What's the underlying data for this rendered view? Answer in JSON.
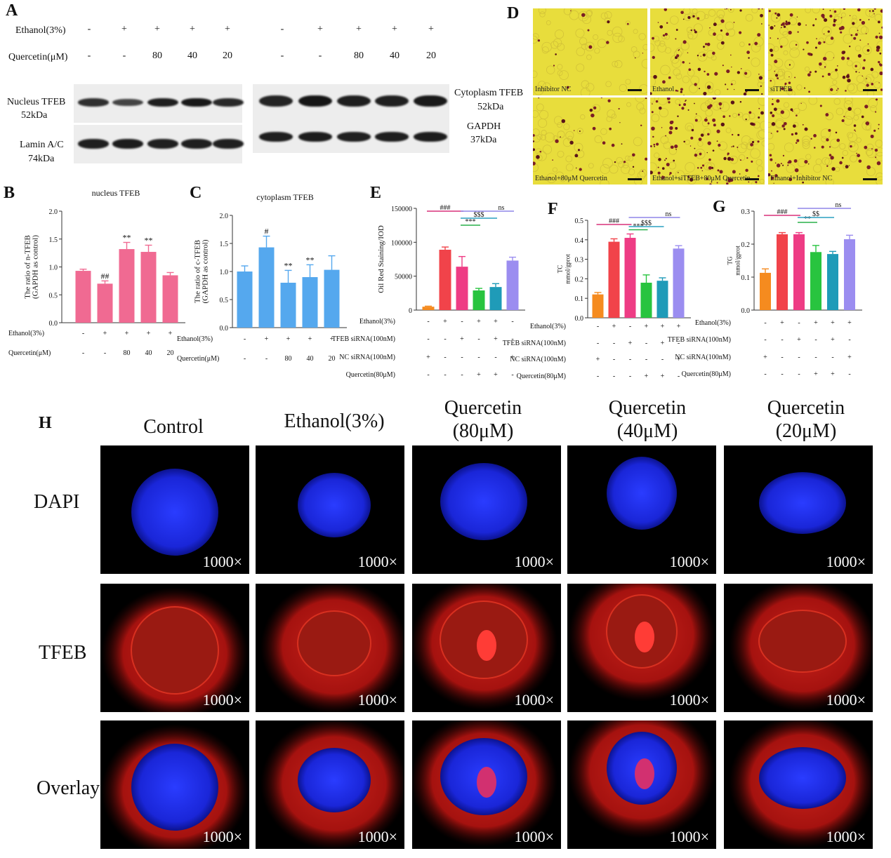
{
  "panel_labels": {
    "A": "A",
    "B": "B",
    "C": "C",
    "D": "D",
    "E": "E",
    "F": "F",
    "G": "G",
    "H": "H"
  },
  "western_blot": {
    "conditions": [
      {
        "label": "Ethanol(3%)",
        "values": [
          "-",
          "+",
          "+",
          "+",
          "+"
        ]
      },
      {
        "label": "Quercetin(μM)",
        "values": [
          "-",
          "-",
          "80",
          "40",
          "20"
        ]
      }
    ],
    "left_labels": {
      "nucleus": "Nucleus TFEB",
      "nucleus_kda": "52kDa",
      "lamin": "Lamin A/C",
      "lamin_kda": "74kDa"
    },
    "right_labels": {
      "cyto": "Cytoplasm TFEB",
      "cyto_kda": "52kDa",
      "gapdh": "GAPDH",
      "gapdh_kda": "37kDa"
    },
    "nucleus_band_intensity": [
      0.75,
      0.55,
      0.9,
      0.95,
      0.8
    ],
    "lamin_band_intensity": [
      0.9,
      0.92,
      0.9,
      0.9,
      0.88
    ],
    "cyto_band_intensity": [
      0.85,
      0.98,
      0.9,
      0.88,
      0.95
    ],
    "gapdh_band_intensity": [
      0.9,
      0.92,
      0.9,
      0.9,
      0.92
    ]
  },
  "microscopy": {
    "captions": [
      "Inhibitor NC",
      "Ethanol",
      "siTFEB",
      "Ethanol+80μM Quercetin",
      "Ethanol+siTFEB+80μM Quercetin",
      "Ethanol+Inhibitor NC"
    ],
    "droplet_density": [
      0.05,
      0.35,
      0.55,
      0.15,
      0.5,
      0.35
    ]
  },
  "chart_data": [
    {
      "panel": "B",
      "type": "bar",
      "title": "nucleus TFEB",
      "ylabel_lines": [
        "The ratio of n-TFEB",
        "(GAPDH as control)"
      ],
      "ylim": [
        0,
        2.0
      ],
      "yticks": [
        "0.0",
        "0.5",
        "1.0",
        "1.5",
        "2.0"
      ],
      "values": [
        0.93,
        0.7,
        1.32,
        1.27,
        0.85
      ],
      "errors": [
        0.03,
        0.05,
        0.12,
        0.12,
        0.05
      ],
      "annotations": [
        "",
        "##",
        "**",
        "**",
        ""
      ],
      "color": "#f06a92",
      "rows": [
        {
          "label": "Ethanol(3%)",
          "values": [
            "-",
            "+",
            "+",
            "+",
            "+"
          ]
        },
        {
          "label": "Quercetin(μM)",
          "values": [
            "-",
            "-",
            "80",
            "40",
            "20"
          ]
        }
      ]
    },
    {
      "panel": "C",
      "type": "bar",
      "title": "cytoplasm TFEB",
      "ylabel_lines": [
        "The ratio of c-TFEB",
        "(GAPDH as control)"
      ],
      "ylim": [
        0,
        2.0
      ],
      "yticks": [
        "0.0",
        "0.5",
        "1.0",
        "1.5",
        "2.0"
      ],
      "values": [
        1.0,
        1.43,
        0.8,
        0.9,
        1.03
      ],
      "errors": [
        0.1,
        0.2,
        0.22,
        0.22,
        0.25
      ],
      "annotations": [
        "",
        "#",
        "**",
        "**",
        ""
      ],
      "color": "#55a8ee",
      "rows": [
        {
          "label": "Ethanol(3%)",
          "values": [
            "-",
            "+",
            "+",
            "+",
            "+"
          ]
        },
        {
          "label": "Quercetin(μM)",
          "values": [
            "-",
            "-",
            "80",
            "40",
            "20"
          ]
        }
      ]
    },
    {
      "panel": "E",
      "type": "bar",
      "ylabel_lines": [
        "Oil Red Staining/IOD"
      ],
      "ylim": [
        0,
        150000
      ],
      "yticks": [
        "0",
        "50000",
        "100000",
        "150000"
      ],
      "values": [
        5000,
        89000,
        64000,
        29000,
        34000,
        73000
      ],
      "errors": [
        800,
        4000,
        15000,
        3000,
        5000,
        5000
      ],
      "colors": [
        "#f58b1f",
        "#f1434a",
        "#ee3c84",
        "#28c43f",
        "#1f9bb8",
        "#9b8df0"
      ],
      "brackets": [
        {
          "text": "###",
          "from": 0,
          "to": 2,
          "color": "#d8307a",
          "level": 0
        },
        {
          "text": "***",
          "from": 2,
          "to": 3,
          "color": "#28b04a",
          "level": 2
        },
        {
          "text": "$$$",
          "from": 2,
          "to": 4,
          "color": "#2aa0c0",
          "level": 1
        },
        {
          "text": "ns",
          "from": 2,
          "to": 5,
          "color": "#8f86e8",
          "level": 0
        }
      ],
      "rows": [
        {
          "label": "Ethanol(3%)",
          "values": [
            "-",
            "+",
            "-",
            "+",
            "+",
            "-"
          ]
        },
        {
          "label": "TFEB siRNA(100nM)",
          "values": [
            "-",
            "-",
            "+",
            "-",
            "+",
            "-"
          ]
        },
        {
          "label": "NC siRNA(100nM)",
          "values": [
            "+",
            "-",
            "-",
            "-",
            "-",
            "+"
          ]
        },
        {
          "label": "Quercetin(80μM)",
          "values": [
            "-",
            "-",
            "-",
            "+",
            "+",
            "-"
          ]
        }
      ]
    },
    {
      "panel": "F",
      "type": "bar",
      "ylabel_lines": [
        "TC",
        "mmol/gprot"
      ],
      "ylim": [
        0,
        0.5
      ],
      "yticks": [
        "0.0",
        "0.1",
        "0.2",
        "0.3",
        "0.4",
        "0.5"
      ],
      "values": [
        0.12,
        0.39,
        0.41,
        0.18,
        0.19,
        0.355
      ],
      "errors": [
        0.01,
        0.015,
        0.02,
        0.04,
        0.015,
        0.015
      ],
      "colors": [
        "#f58b1f",
        "#f1434a",
        "#ee3c84",
        "#28c43f",
        "#1f9bb8",
        "#9b8df0"
      ],
      "brackets": [
        {
          "text": "###",
          "from": 0,
          "to": 2,
          "color": "#d8307a",
          "level": 1
        },
        {
          "text": "***",
          "from": 2,
          "to": 3,
          "color": "#28b04a",
          "level": 2
        },
        {
          "text": "$$$",
          "from": 2,
          "to": 4,
          "color": "#2aa0c0",
          "level": 1.3
        },
        {
          "text": "ns",
          "from": 2,
          "to": 5,
          "color": "#8f86e8",
          "level": 0
        }
      ],
      "rows": [
        {
          "label": "Ethanol(3%)",
          "values": [
            "-",
            "+",
            "-",
            "+",
            "+",
            "+"
          ]
        },
        {
          "label": "TFEB siRNA(100nM)",
          "values": [
            "-",
            "-",
            "+",
            "-",
            "+",
            "-"
          ]
        },
        {
          "label": "NC siRNA(100nM)",
          "values": [
            "+",
            "-",
            "-",
            "-",
            "-",
            "+"
          ]
        },
        {
          "label": "Quercetin(80μM)",
          "values": [
            "-",
            "-",
            "-",
            "+",
            "+",
            "-"
          ]
        }
      ]
    },
    {
      "panel": "G",
      "type": "bar",
      "ylabel_lines": [
        "TG",
        "mmol/gprot"
      ],
      "ylim": [
        0,
        0.3
      ],
      "yticks": [
        "0.0",
        "0.1",
        "0.2",
        "0.3"
      ],
      "values": [
        0.113,
        0.23,
        0.23,
        0.176,
        0.17,
        0.215
      ],
      "errors": [
        0.012,
        0.005,
        0.005,
        0.02,
        0.008,
        0.012
      ],
      "colors": [
        "#f58b1f",
        "#f1434a",
        "#ee3c84",
        "#28c43f",
        "#1f9bb8",
        "#9b8df0"
      ],
      "brackets": [
        {
          "text": "###",
          "from": 0,
          "to": 2,
          "color": "#d8307a",
          "level": 1
        },
        {
          "text": "**",
          "from": 2,
          "to": 3,
          "color": "#28b04a",
          "level": 2
        },
        {
          "text": "$$",
          "from": 2,
          "to": 4,
          "color": "#2aa0c0",
          "level": 1.3
        },
        {
          "text": "ns",
          "from": 2,
          "to": 5,
          "color": "#8f86e8",
          "level": 0
        }
      ],
      "rows": [
        {
          "label": "Ethanol(3%)",
          "values": [
            "-",
            "+",
            "-",
            "+",
            "+",
            "+"
          ]
        },
        {
          "label": "TFEB siRNA(100nM)",
          "values": [
            "-",
            "-",
            "+",
            "-",
            "+",
            "-"
          ]
        },
        {
          "label": "NC siRNA(100nM)",
          "values": [
            "+",
            "-",
            "-",
            "-",
            "-",
            "+"
          ]
        },
        {
          "label": "Quercetin(80μM)",
          "values": [
            "-",
            "-",
            "-",
            "+",
            "+",
            "-"
          ]
        }
      ]
    }
  ],
  "confocal": {
    "columns": [
      [
        "Control"
      ],
      [
        "Ethanol(3%)"
      ],
      [
        "Quercetin",
        "(80μM)"
      ],
      [
        "Quercetin",
        "(40μM)"
      ],
      [
        "Quercetin",
        "(20μM)"
      ]
    ],
    "rows": [
      "DAPI",
      "TFEB",
      "Overlay"
    ],
    "magnification": "1000×"
  }
}
